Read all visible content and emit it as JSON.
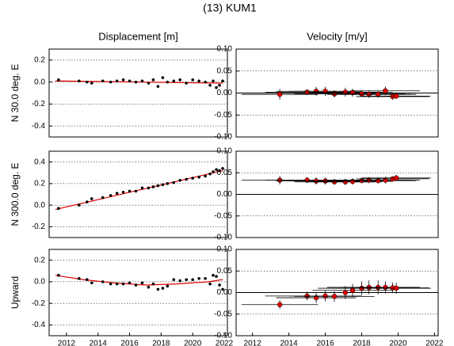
{
  "title": "(13) KUM1",
  "chart_data": [
    {
      "type": "scatter",
      "title": "Displacement [m]",
      "ylabel": "N 30.0 deg. E",
      "xlim": [
        2010.9,
        2022.2
      ],
      "ylim": [
        -0.5,
        0.3
      ],
      "yticks": [
        0.2,
        {
          "value": 0,
          "label": "0.0"
        },
        -0.2,
        -0.4
      ],
      "grid": true,
      "points": {
        "color": "#000000",
        "x": [
          2011.5,
          2012.8,
          2013.3,
          2013.6,
          2014.3,
          2014.8,
          2015.2,
          2015.6,
          2016.0,
          2016.4,
          2016.8,
          2017.2,
          2017.5,
          2017.8,
          2018.1,
          2018.4,
          2018.8,
          2019.2,
          2019.6,
          2020.0,
          2020.4,
          2020.8,
          2021.1,
          2021.3,
          2021.5,
          2021.7,
          2021.9
        ],
        "values": [
          0.02,
          0.01,
          0.0,
          -0.01,
          0.01,
          0.0,
          0.01,
          0.02,
          0.01,
          0.0,
          0.01,
          -0.01,
          0.02,
          -0.04,
          0.04,
          0.0,
          0.01,
          0.02,
          -0.01,
          0.02,
          0.01,
          0.0,
          -0.03,
          0.01,
          -0.05,
          -0.03,
          0.01
        ]
      },
      "fit": {
        "color": "#e00000",
        "x": [
          2011.3,
          2021.9
        ],
        "values": [
          0.01,
          -0.01
        ]
      }
    },
    {
      "type": "errorbar",
      "title": "Velocity [m/y]",
      "xlim": [
        2011.1,
        2022.2
      ],
      "ylim": [
        -0.1,
        0.1
      ],
      "yticks": [
        {
          "value": 0.1,
          "label": "0.10"
        },
        0.05,
        {
          "value": 0,
          "label": "0.00"
        },
        -0.05,
        {
          "value": -0.1,
          "label": "-0.10"
        }
      ],
      "grid": true,
      "zero_line": true,
      "color": "#e00000",
      "x": [
        2013.5,
        2015.0,
        2015.5,
        2016.0,
        2016.5,
        2017.1,
        2017.5,
        2018.0,
        2018.4,
        2018.9,
        2019.3,
        2019.7,
        2019.9
      ],
      "x_errors": [
        2.1,
        2.3,
        2.2,
        2.0,
        2.2,
        2.0,
        2.2,
        2.4,
        2.3,
        2.1,
        1.9,
        2.0,
        1.9
      ],
      "values": [
        -0.003,
        0.002,
        0.004,
        0.004,
        -0.002,
        0.002,
        0.001,
        -0.002,
        -0.003,
        -0.003,
        0.005,
        -0.008,
        -0.007
      ],
      "errors": [
        0.012,
        0.006,
        0.01,
        0.01,
        0.008,
        0.01,
        0.009,
        0.007,
        0.008,
        0.008,
        0.01,
        0.007,
        0.006
      ]
    },
    {
      "type": "scatter",
      "ylabel": "N 300.0 deg. E",
      "xlim": [
        2010.9,
        2022.2
      ],
      "ylim": [
        -0.3,
        0.5
      ],
      "yticks": [
        0.4,
        0.2,
        {
          "value": 0,
          "label": "0.0"
        },
        -0.2
      ],
      "grid": true,
      "points": {
        "color": "#000000",
        "x": [
          2011.5,
          2012.8,
          2013.3,
          2013.6,
          2014.3,
          2014.8,
          2015.2,
          2015.6,
          2016.0,
          2016.4,
          2016.8,
          2017.2,
          2017.5,
          2017.8,
          2018.1,
          2018.4,
          2018.8,
          2019.2,
          2019.6,
          2020.0,
          2020.4,
          2020.8,
          2021.1,
          2021.3,
          2021.5,
          2021.7,
          2021.9
        ],
        "values": [
          -0.03,
          0.0,
          0.03,
          0.06,
          0.07,
          0.09,
          0.11,
          0.12,
          0.13,
          0.13,
          0.16,
          0.16,
          0.17,
          0.18,
          0.19,
          0.2,
          0.21,
          0.23,
          0.24,
          0.25,
          0.26,
          0.27,
          0.29,
          0.31,
          0.33,
          0.32,
          0.34
        ]
      },
      "fit": {
        "color": "#e00000",
        "x": [
          2011.3,
          2021.9
        ],
        "values": [
          -0.04,
          0.32
        ]
      }
    },
    {
      "type": "errorbar",
      "xlim": [
        2011.1,
        2022.2
      ],
      "ylim": [
        -0.1,
        0.1
      ],
      "yticks": [
        {
          "value": 0.1,
          "label": "0.10"
        },
        0.05,
        {
          "value": 0,
          "label": "0.00"
        },
        -0.05,
        {
          "value": -0.1,
          "label": "-0.10"
        }
      ],
      "grid": true,
      "zero_line": true,
      "color": "#e00000",
      "x": [
        2013.5,
        2015.0,
        2015.5,
        2016.0,
        2016.5,
        2017.1,
        2017.5,
        2018.0,
        2018.4,
        2018.9,
        2019.3,
        2019.7,
        2019.9
      ],
      "x_errors": [
        2.1,
        2.3,
        2.2,
        2.0,
        2.2,
        2.0,
        2.2,
        2.4,
        2.3,
        2.1,
        1.9,
        2.0,
        1.9
      ],
      "values": [
        0.033,
        0.033,
        0.031,
        0.031,
        0.029,
        0.029,
        0.03,
        0.032,
        0.033,
        0.032,
        0.033,
        0.036,
        0.038
      ],
      "errors": [
        0.01,
        0.006,
        0.008,
        0.008,
        0.006,
        0.007,
        0.007,
        0.006,
        0.007,
        0.007,
        0.008,
        0.006,
        0.007
      ]
    },
    {
      "type": "scatter",
      "ylabel": "Upward",
      "xlim": [
        2010.9,
        2022.2
      ],
      "ylim": [
        -0.5,
        0.3
      ],
      "yticks": [
        0.2,
        {
          "value": 0,
          "label": "0.0"
        },
        -0.2,
        -0.4
      ],
      "grid": true,
      "xticks": [
        2012,
        2014,
        2016,
        2018,
        2020,
        2022
      ],
      "points": {
        "color": "#000000",
        "x": [
          2011.5,
          2012.8,
          2013.3,
          2013.6,
          2014.3,
          2014.8,
          2015.2,
          2015.6,
          2016.0,
          2016.4,
          2016.8,
          2017.2,
          2017.5,
          2017.8,
          2018.1,
          2018.4,
          2018.8,
          2019.2,
          2019.6,
          2020.0,
          2020.4,
          2020.8,
          2021.1,
          2021.3,
          2021.5,
          2021.7,
          2021.9
        ],
        "values": [
          0.06,
          0.03,
          0.02,
          -0.01,
          0.0,
          -0.02,
          -0.02,
          -0.02,
          -0.01,
          -0.03,
          -0.01,
          -0.05,
          -0.02,
          -0.07,
          -0.06,
          -0.04,
          0.02,
          0.01,
          0.02,
          0.02,
          0.03,
          0.03,
          -0.02,
          0.06,
          0.05,
          -0.03,
          -0.07
        ]
      },
      "fit": {
        "color": "#e00000",
        "x": [
          2011.3,
          2013,
          2015,
          2017,
          2019,
          2021,
          2021.9
        ],
        "values": [
          0.06,
          0.02,
          -0.01,
          -0.03,
          -0.02,
          0.0,
          0.02
        ]
      }
    },
    {
      "type": "errorbar",
      "xlim": [
        2011.1,
        2022.2
      ],
      "ylim": [
        -0.1,
        0.1
      ],
      "yticks": [
        {
          "value": 0.1,
          "label": "0.10"
        },
        0.05,
        {
          "value": 0,
          "label": "0.00"
        },
        -0.05,
        {
          "value": -0.1,
          "label": "-0.10"
        }
      ],
      "grid": true,
      "zero_line": true,
      "color": "#e00000",
      "xticks": [
        2012,
        2014,
        2016,
        2018,
        2020,
        2022
      ],
      "x": [
        2013.5,
        2015.0,
        2015.5,
        2016.0,
        2016.5,
        2017.1,
        2017.5,
        2018.0,
        2018.4,
        2018.9,
        2019.3,
        2019.7,
        2019.9
      ],
      "x_errors": [
        2.1,
        2.3,
        2.2,
        2.0,
        2.2,
        2.0,
        2.2,
        2.4,
        2.3,
        2.1,
        1.9,
        2.0,
        1.9
      ],
      "values": [
        -0.028,
        -0.008,
        -0.012,
        -0.008,
        -0.009,
        0.0,
        0.005,
        0.01,
        0.012,
        0.012,
        0.012,
        0.011,
        0.01
      ],
      "errors": [
        0.01,
        0.01,
        0.012,
        0.012,
        0.012,
        0.015,
        0.015,
        0.016,
        0.016,
        0.016,
        0.014,
        0.012,
        0.013
      ]
    }
  ]
}
